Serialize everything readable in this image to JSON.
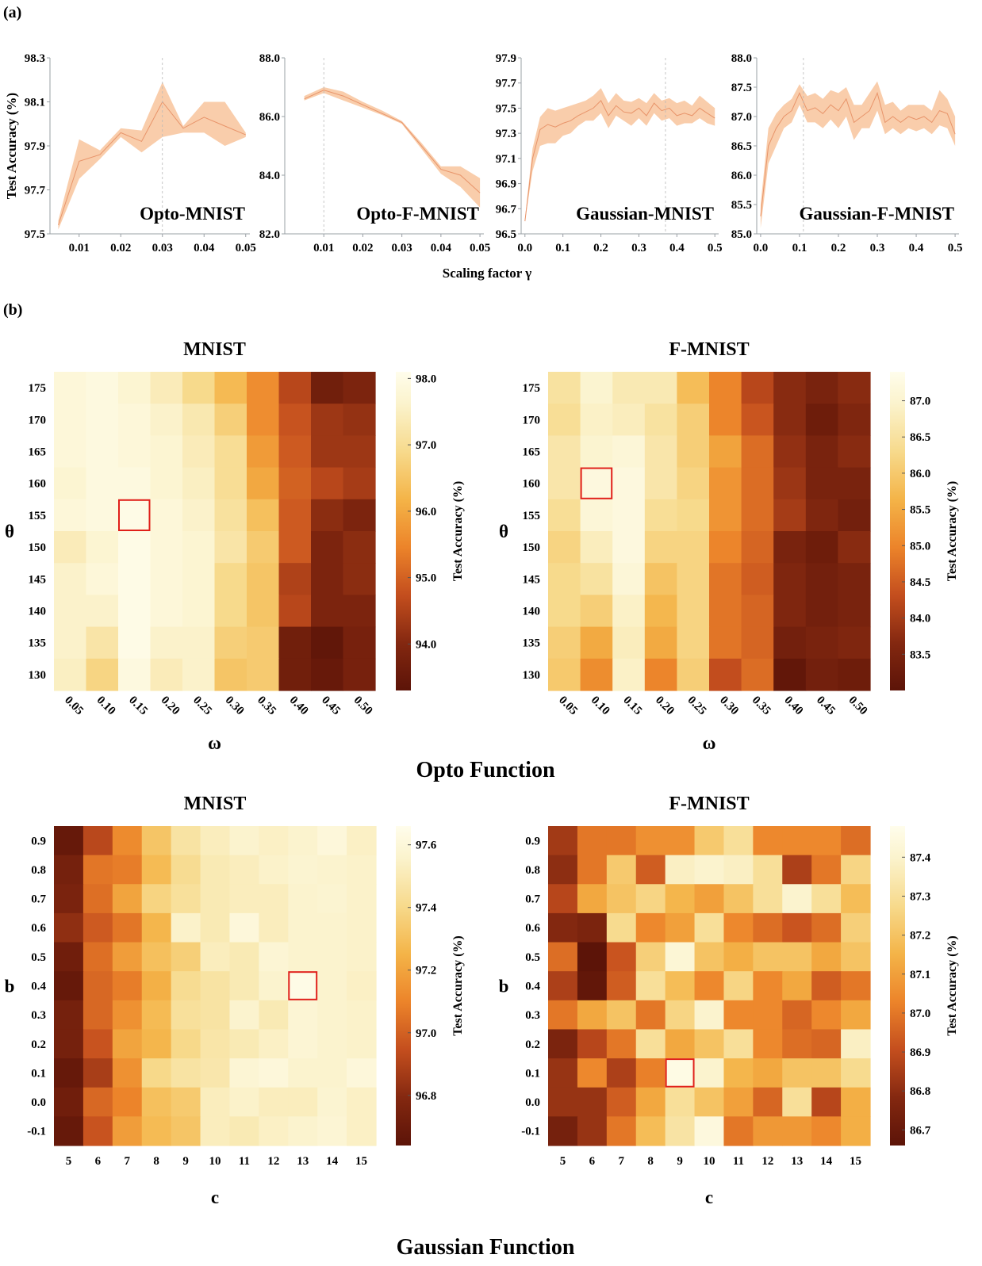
{
  "panel_labels": {
    "a": "(a)",
    "b": "(b)"
  },
  "section_titles": {
    "opto": "Opto Function",
    "gaussian": "Gaussian Function"
  },
  "line_xlabel": "Scaling factor γ",
  "line_ylabel": "Test Accuracy (%)",
  "colorbar_label": "Test Accuracy (%)",
  "chart_data": [
    {
      "type": "line",
      "title": "Opto-MNIST",
      "color": "#f0a070",
      "xlim": [
        0.003,
        0.051
      ],
      "ylim": [
        97.5,
        98.3
      ],
      "xticks": [
        0.01,
        0.02,
        0.03,
        0.04,
        0.05
      ],
      "xtick_labels": [
        "0.01",
        "0.02",
        "0.03",
        "0.04",
        "0.05"
      ],
      "yticks": [
        97.5,
        97.7,
        97.9,
        98.1,
        98.3
      ],
      "ytick_labels": [
        "97.5",
        "97.7",
        "97.9",
        "98.1",
        "98.3"
      ],
      "best_x": 0.03,
      "x": [
        0.005,
        0.01,
        0.015,
        0.02,
        0.025,
        0.03,
        0.035,
        0.04,
        0.045,
        0.05
      ],
      "mean": [
        97.54,
        97.83,
        97.86,
        97.96,
        97.92,
        98.1,
        97.98,
        98.03,
        97.99,
        97.95
      ],
      "lower": [
        97.52,
        97.75,
        97.84,
        97.94,
        97.87,
        97.94,
        97.96,
        97.96,
        97.9,
        97.94
      ],
      "upper": [
        97.56,
        97.93,
        97.88,
        97.98,
        97.97,
        98.19,
        97.99,
        98.1,
        98.1,
        97.96
      ]
    },
    {
      "type": "line",
      "title": "Opto-F-MNIST",
      "color": "#f0a070",
      "xlim": [
        0.0,
        0.051
      ],
      "ylim": [
        82.0,
        88.0
      ],
      "xticks": [
        0.01,
        0.02,
        0.03,
        0.04,
        0.05
      ],
      "xtick_labels": [
        "0.01",
        "0.02",
        "0.03",
        "0.04",
        "0.05"
      ],
      "yticks": [
        82.0,
        84.0,
        86.0,
        88.0
      ],
      "ytick_labels": [
        "82.0",
        "84.0",
        "86.0",
        "88.0"
      ],
      "best_x": 0.01,
      "x": [
        0.005,
        0.01,
        0.015,
        0.02,
        0.025,
        0.03,
        0.035,
        0.04,
        0.045,
        0.05
      ],
      "mean": [
        86.6,
        86.9,
        86.7,
        86.4,
        86.1,
        85.8,
        85.0,
        84.2,
        84.0,
        83.4
      ],
      "lower": [
        86.55,
        86.8,
        86.55,
        86.3,
        86.05,
        85.75,
        84.9,
        84.05,
        83.6,
        82.9
      ],
      "upper": [
        86.7,
        87.0,
        86.85,
        86.5,
        86.2,
        85.85,
        85.1,
        84.3,
        84.3,
        83.9
      ]
    },
    {
      "type": "line",
      "title": "Gaussian-MNIST",
      "color": "#f0a070",
      "xlim": [
        -0.01,
        0.51
      ],
      "ylim": [
        96.5,
        97.9
      ],
      "xticks": [
        0.0,
        0.1,
        0.2,
        0.3,
        0.4,
        0.5
      ],
      "xtick_labels": [
        "0.0",
        "0.1",
        "0.2",
        "0.3",
        "0.4",
        "0.5"
      ],
      "yticks": [
        96.5,
        96.7,
        96.9,
        97.1,
        97.3,
        97.5,
        97.7,
        97.9
      ],
      "ytick_labels": [
        "96.5",
        "96.7",
        "96.9",
        "97.1",
        "97.3",
        "97.5",
        "97.7",
        "97.9"
      ],
      "best_x": 0.37,
      "x": [
        0.0,
        0.02,
        0.04,
        0.06,
        0.08,
        0.1,
        0.12,
        0.14,
        0.16,
        0.18,
        0.2,
        0.22,
        0.24,
        0.26,
        0.28,
        0.3,
        0.32,
        0.34,
        0.36,
        0.38,
        0.4,
        0.42,
        0.44,
        0.46,
        0.48,
        0.5
      ],
      "mean": [
        96.6,
        97.1,
        97.33,
        97.37,
        97.35,
        97.38,
        97.4,
        97.44,
        97.47,
        97.5,
        97.56,
        97.44,
        97.52,
        97.47,
        97.46,
        97.5,
        97.44,
        97.54,
        97.48,
        97.5,
        97.44,
        97.46,
        97.44,
        97.5,
        97.46,
        97.42
      ],
      "lower": [
        96.6,
        97.0,
        97.2,
        97.22,
        97.22,
        97.28,
        97.3,
        97.36,
        97.4,
        97.4,
        97.46,
        97.34,
        97.44,
        97.4,
        97.36,
        97.42,
        97.36,
        97.46,
        97.4,
        97.42,
        97.36,
        97.38,
        97.38,
        97.42,
        97.38,
        97.36
      ],
      "upper": [
        96.62,
        97.18,
        97.43,
        97.5,
        97.48,
        97.5,
        97.52,
        97.54,
        97.56,
        97.6,
        97.66,
        97.54,
        97.62,
        97.56,
        97.55,
        97.58,
        97.54,
        97.62,
        97.56,
        97.58,
        97.54,
        97.56,
        97.52,
        97.6,
        97.55,
        97.5
      ]
    },
    {
      "type": "line",
      "title": "Gaussian-F-MNIST",
      "color": "#f0a070",
      "xlim": [
        -0.01,
        0.51
      ],
      "ylim": [
        85.0,
        88.0
      ],
      "xticks": [
        0.0,
        0.1,
        0.2,
        0.3,
        0.4,
        0.5
      ],
      "xtick_labels": [
        "0.0",
        "0.1",
        "0.2",
        "0.3",
        "0.4",
        "0.5"
      ],
      "yticks": [
        85.0,
        85.5,
        86.0,
        86.5,
        87.0,
        87.5,
        88.0
      ],
      "ytick_labels": [
        "85.0",
        "85.5",
        "86.0",
        "86.5",
        "87.0",
        "87.5",
        "88.0"
      ],
      "best_x": 0.11,
      "x": [
        0.0,
        0.02,
        0.04,
        0.06,
        0.08,
        0.1,
        0.12,
        0.14,
        0.16,
        0.18,
        0.2,
        0.22,
        0.24,
        0.26,
        0.28,
        0.3,
        0.32,
        0.34,
        0.36,
        0.38,
        0.4,
        0.42,
        0.44,
        0.46,
        0.48,
        0.5
      ],
      "mean": [
        85.3,
        86.5,
        86.8,
        87.0,
        87.1,
        87.4,
        87.1,
        87.15,
        87.05,
        87.2,
        87.1,
        87.3,
        86.9,
        87.0,
        87.1,
        87.4,
        86.9,
        87.0,
        86.9,
        87.0,
        86.95,
        87.0,
        86.9,
        87.1,
        87.05,
        86.7
      ],
      "lower": [
        85.1,
        86.2,
        86.5,
        86.8,
        86.9,
        87.2,
        86.9,
        86.9,
        86.8,
        86.95,
        86.8,
        87.0,
        86.6,
        86.8,
        86.8,
        87.1,
        86.7,
        86.8,
        86.7,
        86.8,
        86.75,
        86.8,
        86.7,
        86.85,
        86.8,
        86.5
      ],
      "upper": [
        85.5,
        86.8,
        87.05,
        87.2,
        87.3,
        87.55,
        87.35,
        87.4,
        87.3,
        87.45,
        87.4,
        87.5,
        87.2,
        87.2,
        87.4,
        87.6,
        87.2,
        87.25,
        87.1,
        87.2,
        87.2,
        87.2,
        87.1,
        87.45,
        87.3,
        87.0
      ]
    },
    {
      "type": "heatmap",
      "title": "MNIST",
      "section": "Opto Function",
      "xlabel": "ω",
      "ylabel": "θ",
      "x_categories": [
        "0.05",
        "0.10",
        "0.15",
        "0.20",
        "0.25",
        "0.30",
        "0.35",
        "0.40",
        "0.45",
        "0.50"
      ],
      "y_categories": [
        "175",
        "170",
        "165",
        "160",
        "155",
        "150",
        "145",
        "140",
        "135",
        "130"
      ],
      "values": [
        [
          97.8,
          97.9,
          97.7,
          97.4,
          96.9,
          96.3,
          95.6,
          94.6,
          93.7,
          93.9
        ],
        [
          97.8,
          97.9,
          97.8,
          97.6,
          97.3,
          96.7,
          95.6,
          94.8,
          94.3,
          94.2
        ],
        [
          97.8,
          97.9,
          97.8,
          97.7,
          97.4,
          97.0,
          95.8,
          94.9,
          94.3,
          94.3
        ],
        [
          97.7,
          97.9,
          97.9,
          97.7,
          97.5,
          97.0,
          96.0,
          95.0,
          94.6,
          94.4
        ],
        [
          97.8,
          97.9,
          98.0,
          97.8,
          97.6,
          97.1,
          96.4,
          94.9,
          94.1,
          93.9
        ],
        [
          97.4,
          97.7,
          98.0,
          97.8,
          97.7,
          97.2,
          96.6,
          94.9,
          93.9,
          94.1
        ],
        [
          97.6,
          97.8,
          98.0,
          97.8,
          97.7,
          96.9,
          96.5,
          94.5,
          93.9,
          94.1
        ],
        [
          97.6,
          97.6,
          98.0,
          97.8,
          97.7,
          96.9,
          96.5,
          94.6,
          93.9,
          93.9
        ],
        [
          97.6,
          97.2,
          98.0,
          97.6,
          97.6,
          96.7,
          96.6,
          93.7,
          93.4,
          93.8
        ],
        [
          97.5,
          96.8,
          97.9,
          97.4,
          97.6,
          96.5,
          96.6,
          93.7,
          93.5,
          93.8
        ]
      ],
      "vmin": 93.3,
      "vmax": 98.1,
      "colorbar_ticks": [
        98.0,
        97.0,
        96.0,
        95.0,
        94.0
      ],
      "colorbar_tick_labels": [
        "98.0",
        "97.0",
        "96.0",
        "95.0",
        "94.0"
      ],
      "highlight": {
        "x": "0.15",
        "y": "155"
      }
    },
    {
      "type": "heatmap",
      "title": "F-MNIST",
      "section": "Opto Function",
      "xlabel": "ω",
      "ylabel": "θ",
      "x_categories": [
        "0.05",
        "0.10",
        "0.15",
        "0.20",
        "0.25",
        "0.30",
        "0.35",
        "0.40",
        "0.45",
        "0.50"
      ],
      "y_categories": [
        "175",
        "170",
        "165",
        "160",
        "155",
        "150",
        "145",
        "140",
        "135",
        "130"
      ],
      "values": [
        [
          86.5,
          87.0,
          86.7,
          86.7,
          85.8,
          85.0,
          84.2,
          83.7,
          83.5,
          83.7
        ],
        [
          86.4,
          86.9,
          86.8,
          86.5,
          86.1,
          85.0,
          84.4,
          83.7,
          83.3,
          83.6
        ],
        [
          86.6,
          87.0,
          87.1,
          86.6,
          86.1,
          85.4,
          84.7,
          83.8,
          83.5,
          83.7
        ],
        [
          86.6,
          87.2,
          87.2,
          86.6,
          86.2,
          85.2,
          84.7,
          83.9,
          83.5,
          83.5
        ],
        [
          86.4,
          87.1,
          87.2,
          86.4,
          86.3,
          85.2,
          84.7,
          84.0,
          83.6,
          83.4
        ],
        [
          86.2,
          86.8,
          87.2,
          86.2,
          86.2,
          85.0,
          84.6,
          83.5,
          83.3,
          83.7
        ],
        [
          86.3,
          86.5,
          87.1,
          85.9,
          86.2,
          84.8,
          84.5,
          83.6,
          83.4,
          83.5
        ],
        [
          86.3,
          86.1,
          86.9,
          85.7,
          86.2,
          84.8,
          84.6,
          83.6,
          83.4,
          83.5
        ],
        [
          86.1,
          85.5,
          86.8,
          85.5,
          86.2,
          84.8,
          84.6,
          83.4,
          83.5,
          83.6
        ],
        [
          86.0,
          85.1,
          86.9,
          85.0,
          86.1,
          84.3,
          84.7,
          83.1,
          83.4,
          83.3
        ]
      ],
      "vmin": 83.0,
      "vmax": 87.4,
      "colorbar_ticks": [
        87.0,
        86.5,
        86.0,
        85.5,
        85.0,
        84.5,
        84.0,
        83.5
      ],
      "colorbar_tick_labels": [
        "87.0",
        "86.5",
        "86.0",
        "85.5",
        "85.0",
        "84.5",
        "84.0",
        "83.5"
      ],
      "highlight": {
        "x": "0.10",
        "y": "160"
      }
    },
    {
      "type": "heatmap",
      "title": "MNIST",
      "section": "Gaussian Function",
      "xlabel": "c",
      "ylabel": "b",
      "x_categories": [
        "5",
        "6",
        "7",
        "8",
        "9",
        "10",
        "11",
        "12",
        "13",
        "14",
        "15"
      ],
      "y_categories": [
        "0.9",
        "0.8",
        "0.7",
        "0.6",
        "0.5",
        "0.4",
        "0.3",
        "0.2",
        "0.1",
        "0.0",
        "-0.1"
      ],
      "values": [
        [
          96.68,
          96.92,
          97.12,
          97.32,
          97.46,
          97.52,
          97.56,
          97.54,
          97.56,
          97.6,
          97.54
        ],
        [
          96.74,
          97.06,
          97.08,
          97.28,
          97.42,
          97.5,
          97.52,
          97.55,
          97.57,
          97.56,
          97.55
        ],
        [
          96.76,
          97.04,
          97.2,
          97.38,
          97.44,
          97.5,
          97.52,
          97.52,
          97.56,
          97.57,
          97.55
        ],
        [
          96.82,
          96.98,
          97.06,
          97.26,
          97.55,
          97.5,
          97.6,
          97.52,
          97.56,
          97.56,
          97.55
        ],
        [
          96.72,
          97.04,
          97.18,
          97.3,
          97.36,
          97.52,
          97.5,
          97.58,
          97.56,
          97.56,
          97.55
        ],
        [
          96.68,
          97.02,
          97.08,
          97.24,
          97.42,
          97.46,
          97.5,
          97.56,
          97.64,
          97.56,
          97.54
        ],
        [
          96.74,
          97.02,
          97.14,
          97.28,
          97.44,
          97.46,
          97.56,
          97.5,
          97.58,
          97.56,
          97.55
        ],
        [
          96.74,
          96.96,
          97.2,
          97.26,
          97.4,
          97.47,
          97.5,
          97.54,
          97.58,
          97.56,
          97.55
        ],
        [
          96.68,
          96.88,
          97.14,
          97.4,
          97.46,
          97.48,
          97.58,
          97.6,
          97.56,
          97.56,
          97.6
        ],
        [
          96.72,
          97.02,
          97.1,
          97.3,
          97.34,
          97.52,
          97.55,
          97.52,
          97.52,
          97.57,
          97.54
        ],
        [
          96.68,
          96.96,
          97.18,
          97.28,
          97.32,
          97.52,
          97.5,
          97.54,
          97.56,
          97.58,
          97.54
        ]
      ],
      "vmin": 96.64,
      "vmax": 97.66,
      "colorbar_ticks": [
        97.6,
        97.4,
        97.2,
        97.0,
        96.8
      ],
      "colorbar_tick_labels": [
        "97.6",
        "97.4",
        "97.2",
        "97.0",
        "96.8"
      ],
      "highlight": {
        "x": "13",
        "y": "0.4"
      }
    },
    {
      "type": "heatmap",
      "title": "F-MNIST",
      "section": "Gaussian Function",
      "xlabel": "c",
      "ylabel": "b",
      "x_categories": [
        "5",
        "6",
        "7",
        "8",
        "9",
        "10",
        "11",
        "12",
        "13",
        "14",
        "15"
      ],
      "y_categories": [
        "0.9",
        "0.8",
        "0.7",
        "0.6",
        "0.5",
        "0.4",
        "0.3",
        "0.2",
        "0.1",
        "0.0",
        "-0.1"
      ],
      "values": [
        [
          86.84,
          87.0,
          87.0,
          87.06,
          87.06,
          87.22,
          87.3,
          87.04,
          87.04,
          87.04,
          86.98
        ],
        [
          86.8,
          87.0,
          87.22,
          86.94,
          87.38,
          87.4,
          87.38,
          87.3,
          86.86,
          87.0,
          87.26
        ],
        [
          86.88,
          87.12,
          87.2,
          87.26,
          87.16,
          87.1,
          87.2,
          87.3,
          87.4,
          87.3,
          87.18
        ],
        [
          86.78,
          86.76,
          87.28,
          87.04,
          87.1,
          87.3,
          87.04,
          86.98,
          86.92,
          86.98,
          87.24
        ],
        [
          86.98,
          86.66,
          86.92,
          87.24,
          87.42,
          87.2,
          87.14,
          87.2,
          87.2,
          87.12,
          87.2
        ],
        [
          86.86,
          86.68,
          86.94,
          87.3,
          87.18,
          87.04,
          87.26,
          87.04,
          87.12,
          86.94,
          87.0
        ],
        [
          87.0,
          87.12,
          87.2,
          87.0,
          87.26,
          87.4,
          87.04,
          87.04,
          86.96,
          87.04,
          87.12
        ],
        [
          86.76,
          86.88,
          87.0,
          87.3,
          87.12,
          87.2,
          87.3,
          87.04,
          86.98,
          86.96,
          87.38
        ],
        [
          86.82,
          87.04,
          86.86,
          87.02,
          87.46,
          87.4,
          87.16,
          87.12,
          87.2,
          87.2,
          87.28
        ],
        [
          86.82,
          86.82,
          86.94,
          87.12,
          87.3,
          87.2,
          87.1,
          86.96,
          87.3,
          86.88,
          87.14
        ],
        [
          86.74,
          86.82,
          87.0,
          87.18,
          87.32,
          87.44,
          87.0,
          87.08,
          87.08,
          87.04,
          87.14
        ]
      ],
      "vmin": 86.66,
      "vmax": 87.48,
      "colorbar_ticks": [
        87.4,
        87.3,
        87.2,
        87.1,
        87.0,
        86.9,
        86.8,
        86.7
      ],
      "colorbar_tick_labels": [
        "87.4",
        "87.3",
        "87.2",
        "87.1",
        "87.0",
        "86.9",
        "86.8",
        "86.7"
      ],
      "highlight": {
        "x": "9",
        "y": "0.1"
      }
    }
  ]
}
